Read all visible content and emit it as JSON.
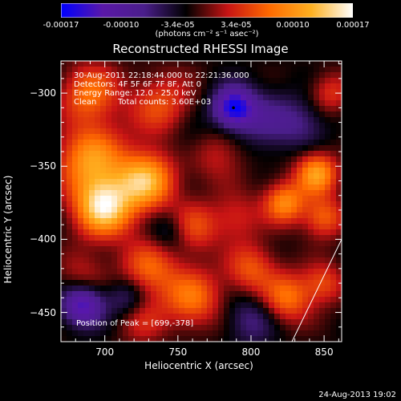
{
  "colorbar": {
    "tick_labels": [
      "-0.00017",
      "-0.00010",
      "-3.4e-05",
      "3.4e-05",
      "0.00010",
      "0.00017"
    ],
    "tick_values": [
      -0.00017,
      -0.0001,
      -3.4e-05,
      3.4e-05,
      0.0001,
      0.00017
    ],
    "range": [
      -0.00017,
      0.00017
    ],
    "unit_label": "(photons cm⁻² s⁻¹ asec⁻²)",
    "colors": [
      "#0000ff",
      "#5a18a8",
      "#4a1e8a",
      "#000000",
      "#c81414",
      "#ff6a00",
      "#ffb020",
      "#ffffff"
    ]
  },
  "chart_data": {
    "type": "heatmap",
    "title": "Reconstructed RHESSI Image",
    "xlabel": "Heliocentric X (arcsec)",
    "ylabel": "Heliocentric Y (arcsec)",
    "xlim": [
      670,
      862
    ],
    "ylim": [
      -470,
      -278
    ],
    "xticks": [
      700,
      750,
      800,
      850
    ],
    "yticks": [
      -300,
      -350,
      -400,
      -450
    ],
    "annotations": {
      "time_range": "30-Aug-2011 22:18:44.000 to 22:21:36.000",
      "detectors": "Detectors: 4F 5F 6F 7F 8F, Att 0",
      "energy": "Energy Range: 12.0 - 25.0 keV",
      "method": "Clean",
      "total_counts": "Total counts: 3.60E+03",
      "peak": "Position of Peak = [699,-378]"
    },
    "peak": [
      699,
      -378
    ],
    "blobs": [
      {
        "x": 699,
        "y": -378,
        "v": 1.0,
        "r": 14
      },
      {
        "x": 728,
        "y": -360,
        "v": 0.85,
        "r": 14
      },
      {
        "x": 690,
        "y": -345,
        "v": 0.7,
        "r": 16
      },
      {
        "x": 740,
        "y": -310,
        "v": 0.45,
        "r": 16
      },
      {
        "x": 690,
        "y": -300,
        "v": 0.55,
        "r": 14
      },
      {
        "x": 775,
        "y": -340,
        "v": 0.35,
        "r": 14
      },
      {
        "x": 845,
        "y": -355,
        "v": 0.75,
        "r": 10
      },
      {
        "x": 855,
        "y": -300,
        "v": 0.35,
        "r": 10
      },
      {
        "x": 823,
        "y": -375,
        "v": 0.65,
        "r": 10
      },
      {
        "x": 850,
        "y": -385,
        "v": 0.5,
        "r": 10
      },
      {
        "x": 790,
        "y": -385,
        "v": 0.3,
        "r": 12
      },
      {
        "x": 760,
        "y": -392,
        "v": 0.45,
        "r": 12
      },
      {
        "x": 730,
        "y": -420,
        "v": 0.5,
        "r": 14
      },
      {
        "x": 760,
        "y": -440,
        "v": 0.55,
        "r": 14
      },
      {
        "x": 725,
        "y": -455,
        "v": 0.3,
        "r": 12
      },
      {
        "x": 800,
        "y": -420,
        "v": 0.45,
        "r": 12
      },
      {
        "x": 825,
        "y": -440,
        "v": 0.55,
        "r": 12
      },
      {
        "x": 850,
        "y": -430,
        "v": 0.4,
        "r": 10
      },
      {
        "x": 685,
        "y": -425,
        "v": 0.25,
        "r": 12
      },
      {
        "x": 788,
        "y": -310,
        "v": -0.85,
        "r": 10
      },
      {
        "x": 685,
        "y": -445,
        "v": -0.7,
        "r": 10
      },
      {
        "x": 810,
        "y": -320,
        "v": -0.3,
        "r": 14
      },
      {
        "x": 760,
        "y": -330,
        "v": -0.25,
        "r": 14
      },
      {
        "x": 745,
        "y": -395,
        "v": -0.3,
        "r": 10
      },
      {
        "x": 715,
        "y": -440,
        "v": -0.35,
        "r": 10
      },
      {
        "x": 800,
        "y": -455,
        "v": -0.3,
        "r": 12
      },
      {
        "x": 835,
        "y": -320,
        "v": -0.25,
        "r": 12
      }
    ],
    "limb_line": {
      "x": [
        828,
        862
      ],
      "y": [
        -470,
        -400
      ]
    }
  },
  "footer": {
    "date": "24-Aug-2013 19:02"
  }
}
